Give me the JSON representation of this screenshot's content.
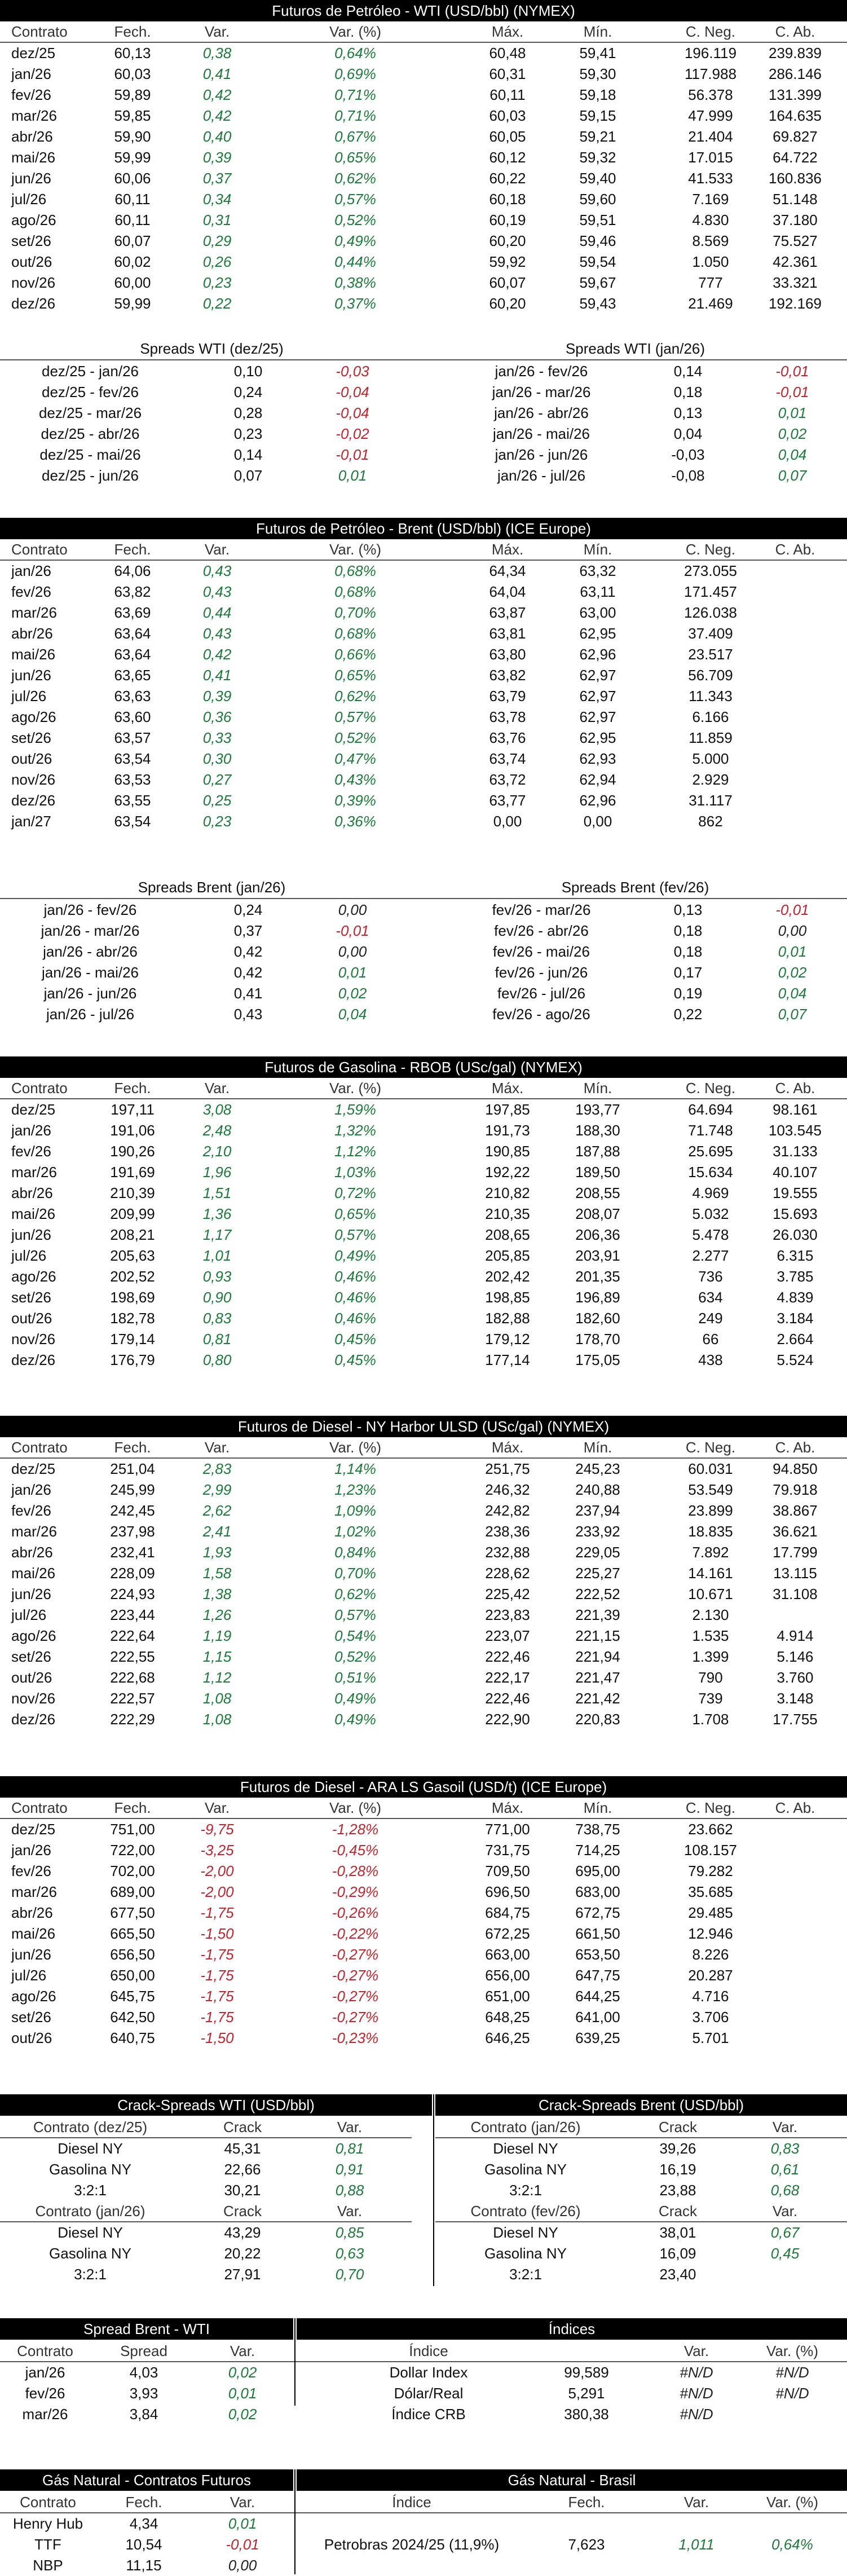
{
  "colors": {
    "positive": "#1e7a3a",
    "negative": "#c0262d",
    "header_bg": "#000000"
  },
  "col_headers": {
    "contrato": "Contrato",
    "fech": "Fech.",
    "var": "Var.",
    "varp": "Var. (%)",
    "max": "Máx.",
    "min": "Mín.",
    "cneg": "C. Neg.",
    "cab": "C. Ab."
  },
  "wti": {
    "title": "Futuros de Petróleo - WTI (USD/bbl) (NYMEX)",
    "rows": [
      [
        "dez/25",
        "60,13",
        "0,38",
        "0,64%",
        "60,48",
        "59,41",
        "196.119",
        "239.839"
      ],
      [
        "jan/26",
        "60,03",
        "0,41",
        "0,69%",
        "60,31",
        "59,30",
        "117.988",
        "286.146"
      ],
      [
        "fev/26",
        "59,89",
        "0,42",
        "0,71%",
        "60,11",
        "59,18",
        "56.378",
        "131.399"
      ],
      [
        "mar/26",
        "59,85",
        "0,42",
        "0,71%",
        "60,03",
        "59,15",
        "47.999",
        "164.635"
      ],
      [
        "abr/26",
        "59,90",
        "0,40",
        "0,67%",
        "60,05",
        "59,21",
        "21.404",
        "69.827"
      ],
      [
        "mai/26",
        "59,99",
        "0,39",
        "0,65%",
        "60,12",
        "59,32",
        "17.015",
        "64.722"
      ],
      [
        "jun/26",
        "60,06",
        "0,37",
        "0,62%",
        "60,22",
        "59,40",
        "41.533",
        "160.836"
      ],
      [
        "jul/26",
        "60,11",
        "0,34",
        "0,57%",
        "60,18",
        "59,60",
        "7.169",
        "51.148"
      ],
      [
        "ago/26",
        "60,11",
        "0,31",
        "0,52%",
        "60,19",
        "59,51",
        "4.830",
        "37.180"
      ],
      [
        "set/26",
        "60,07",
        "0,29",
        "0,49%",
        "60,20",
        "59,46",
        "8.569",
        "75.527"
      ],
      [
        "out/26",
        "60,02",
        "0,26",
        "0,44%",
        "59,92",
        "59,54",
        "1.050",
        "42.361"
      ],
      [
        "nov/26",
        "60,00",
        "0,23",
        "0,38%",
        "60,07",
        "59,67",
        "777",
        "33.321"
      ],
      [
        "dez/26",
        "59,99",
        "0,22",
        "0,37%",
        "60,20",
        "59,43",
        "21.469",
        "192.169"
      ]
    ],
    "spreads_left_title": "Spreads WTI (dez/25)",
    "spreads_right_title": "Spreads WTI (jan/26)",
    "spreads_left": [
      [
        "dez/25 - jan/26",
        "0,10",
        "-0,03"
      ],
      [
        "dez/25 - fev/26",
        "0,24",
        "-0,04"
      ],
      [
        "dez/25 - mar/26",
        "0,28",
        "-0,04"
      ],
      [
        "dez/25 - abr/26",
        "0,23",
        "-0,02"
      ],
      [
        "dez/25 - mai/26",
        "0,14",
        "-0,01"
      ],
      [
        "dez/25 - jun/26",
        "0,07",
        "0,01"
      ]
    ],
    "spreads_right": [
      [
        "jan/26 - fev/26",
        "0,14",
        "-0,01"
      ],
      [
        "jan/26 - mar/26",
        "0,18",
        "-0,01"
      ],
      [
        "jan/26 - abr/26",
        "0,13",
        "0,01"
      ],
      [
        "jan/26 - mai/26",
        "0,04",
        "0,02"
      ],
      [
        "jan/26 - jun/26",
        "-0,03",
        "0,04"
      ],
      [
        "jan/26 - jul/26",
        "-0,08",
        "0,07"
      ]
    ]
  },
  "brent": {
    "title": "Futuros de Petróleo - Brent (USD/bbl) (ICE Europe)",
    "rows": [
      [
        "jan/26",
        "64,06",
        "0,43",
        "0,68%",
        "64,34",
        "63,32",
        "273.055",
        ""
      ],
      [
        "fev/26",
        "63,82",
        "0,43",
        "0,68%",
        "64,04",
        "63,11",
        "171.457",
        ""
      ],
      [
        "mar/26",
        "63,69",
        "0,44",
        "0,70%",
        "63,87",
        "63,00",
        "126.038",
        ""
      ],
      [
        "abr/26",
        "63,64",
        "0,43",
        "0,68%",
        "63,81",
        "62,95",
        "37.409",
        ""
      ],
      [
        "mai/26",
        "63,64",
        "0,42",
        "0,66%",
        "63,80",
        "62,96",
        "23.517",
        ""
      ],
      [
        "jun/26",
        "63,65",
        "0,41",
        "0,65%",
        "63,82",
        "62,97",
        "56.709",
        ""
      ],
      [
        "jul/26",
        "63,63",
        "0,39",
        "0,62%",
        "63,79",
        "62,97",
        "11.343",
        ""
      ],
      [
        "ago/26",
        "63,60",
        "0,36",
        "0,57%",
        "63,78",
        "62,97",
        "6.166",
        ""
      ],
      [
        "set/26",
        "63,57",
        "0,33",
        "0,52%",
        "63,76",
        "62,95",
        "11.859",
        ""
      ],
      [
        "out/26",
        "63,54",
        "0,30",
        "0,47%",
        "63,74",
        "62,93",
        "5.000",
        ""
      ],
      [
        "nov/26",
        "63,53",
        "0,27",
        "0,43%",
        "63,72",
        "62,94",
        "2.929",
        ""
      ],
      [
        "dez/26",
        "63,55",
        "0,25",
        "0,39%",
        "63,77",
        "62,96",
        "31.117",
        ""
      ],
      [
        "jan/27",
        "63,54",
        "0,23",
        "0,36%",
        "0,00",
        "0,00",
        "862",
        ""
      ]
    ],
    "spreads_left_title": "Spreads Brent (jan/26)",
    "spreads_right_title": "Spreads Brent (fev/26)",
    "spreads_left": [
      [
        "jan/26 - fev/26",
        "0,24",
        "0,00"
      ],
      [
        "jan/26 - mar/26",
        "0,37",
        "-0,01"
      ],
      [
        "jan/26 - abr/26",
        "0,42",
        "0,00"
      ],
      [
        "jan/26 - mai/26",
        "0,42",
        "0,01"
      ],
      [
        "jan/26 - jun/26",
        "0,41",
        "0,02"
      ],
      [
        "jan/26 - jul/26",
        "0,43",
        "0,04"
      ]
    ],
    "spreads_right": [
      [
        "fev/26 - mar/26",
        "0,13",
        "-0,01"
      ],
      [
        "fev/26 - abr/26",
        "0,18",
        "0,00"
      ],
      [
        "fev/26 - mai/26",
        "0,18",
        "0,01"
      ],
      [
        "fev/26 - jun/26",
        "0,17",
        "0,02"
      ],
      [
        "fev/26 - jul/26",
        "0,19",
        "0,04"
      ],
      [
        "fev/26 - ago/26",
        "0,22",
        "0,07"
      ]
    ]
  },
  "rbob": {
    "title": "Futuros de Gasolina - RBOB (USc/gal) (NYMEX)",
    "rows": [
      [
        "dez/25",
        "197,11",
        "3,08",
        "1,59%",
        "197,85",
        "193,77",
        "64.694",
        "98.161"
      ],
      [
        "jan/26",
        "191,06",
        "2,48",
        "1,32%",
        "191,73",
        "188,30",
        "71.748",
        "103.545"
      ],
      [
        "fev/26",
        "190,26",
        "2,10",
        "1,12%",
        "190,85",
        "187,88",
        "25.695",
        "31.133"
      ],
      [
        "mar/26",
        "191,69",
        "1,96",
        "1,03%",
        "192,22",
        "189,50",
        "15.634",
        "40.107"
      ],
      [
        "abr/26",
        "210,39",
        "1,51",
        "0,72%",
        "210,82",
        "208,55",
        "4.969",
        "19.555"
      ],
      [
        "mai/26",
        "209,99",
        "1,36",
        "0,65%",
        "210,35",
        "208,07",
        "5.032",
        "15.693"
      ],
      [
        "jun/26",
        "208,21",
        "1,17",
        "0,57%",
        "208,65",
        "206,36",
        "5.478",
        "26.030"
      ],
      [
        "jul/26",
        "205,63",
        "1,01",
        "0,49%",
        "205,85",
        "203,91",
        "2.277",
        "6.315"
      ],
      [
        "ago/26",
        "202,52",
        "0,93",
        "0,46%",
        "202,42",
        "201,35",
        "736",
        "3.785"
      ],
      [
        "set/26",
        "198,69",
        "0,90",
        "0,46%",
        "198,85",
        "196,89",
        "634",
        "4.839"
      ],
      [
        "out/26",
        "182,78",
        "0,83",
        "0,46%",
        "182,88",
        "182,60",
        "249",
        "3.184"
      ],
      [
        "nov/26",
        "179,14",
        "0,81",
        "0,45%",
        "179,12",
        "178,70",
        "66",
        "2.664"
      ],
      [
        "dez/26",
        "176,79",
        "0,80",
        "0,45%",
        "177,14",
        "175,05",
        "438",
        "5.524"
      ]
    ]
  },
  "ulsd": {
    "title": "Futuros de Diesel - NY Harbor ULSD (USc/gal) (NYMEX)",
    "rows": [
      [
        "dez/25",
        "251,04",
        "2,83",
        "1,14%",
        "251,75",
        "245,23",
        "60.031",
        "94.850"
      ],
      [
        "jan/26",
        "245,99",
        "2,99",
        "1,23%",
        "246,32",
        "240,88",
        "53.549",
        "79.918"
      ],
      [
        "fev/26",
        "242,45",
        "2,62",
        "1,09%",
        "242,82",
        "237,94",
        "23.899",
        "38.867"
      ],
      [
        "mar/26",
        "237,98",
        "2,41",
        "1,02%",
        "238,36",
        "233,92",
        "18.835",
        "36.621"
      ],
      [
        "abr/26",
        "232,41",
        "1,93",
        "0,84%",
        "232,88",
        "229,05",
        "7.892",
        "17.799"
      ],
      [
        "mai/26",
        "228,09",
        "1,58",
        "0,70%",
        "228,62",
        "225,27",
        "14.161",
        "13.115"
      ],
      [
        "jun/26",
        "224,93",
        "1,38",
        "0,62%",
        "225,42",
        "222,52",
        "10.671",
        "31.108"
      ],
      [
        "jul/26",
        "223,44",
        "1,26",
        "0,57%",
        "223,83",
        "221,39",
        "2.130",
        ""
      ],
      [
        "ago/26",
        "222,64",
        "1,19",
        "0,54%",
        "223,07",
        "221,15",
        "1.535",
        "4.914"
      ],
      [
        "set/26",
        "222,55",
        "1,15",
        "0,52%",
        "222,46",
        "221,94",
        "1.399",
        "5.146"
      ],
      [
        "out/26",
        "222,68",
        "1,12",
        "0,51%",
        "222,17",
        "221,47",
        "790",
        "3.760"
      ],
      [
        "nov/26",
        "222,57",
        "1,08",
        "0,49%",
        "222,46",
        "221,42",
        "739",
        "3.148"
      ],
      [
        "dez/26",
        "222,29",
        "1,08",
        "0,49%",
        "222,90",
        "220,83",
        "1.708",
        "17.755"
      ]
    ]
  },
  "gasoil": {
    "title": "Futuros de Diesel - ARA LS Gasoil (USD/t) (ICE Europe)",
    "rows": [
      [
        "dez/25",
        "751,00",
        "-9,75",
        "-1,28%",
        "771,00",
        "738,75",
        "23.662",
        ""
      ],
      [
        "jan/26",
        "722,00",
        "-3,25",
        "-0,45%",
        "731,75",
        "714,25",
        "108.157",
        ""
      ],
      [
        "fev/26",
        "702,00",
        "-2,00",
        "-0,28%",
        "709,50",
        "695,00",
        "79.282",
        ""
      ],
      [
        "mar/26",
        "689,00",
        "-2,00",
        "-0,29%",
        "696,50",
        "683,00",
        "35.685",
        ""
      ],
      [
        "abr/26",
        "677,50",
        "-1,75",
        "-0,26%",
        "684,75",
        "672,75",
        "29.485",
        ""
      ],
      [
        "mai/26",
        "665,50",
        "-1,50",
        "-0,22%",
        "672,25",
        "661,50",
        "12.946",
        ""
      ],
      [
        "jun/26",
        "656,50",
        "-1,75",
        "-0,27%",
        "663,00",
        "653,50",
        "8.226",
        ""
      ],
      [
        "jul/26",
        "650,00",
        "-1,75",
        "-0,27%",
        "656,00",
        "647,75",
        "20.287",
        ""
      ],
      [
        "ago/26",
        "645,75",
        "-1,75",
        "-0,27%",
        "651,00",
        "644,25",
        "4.716",
        ""
      ],
      [
        "set/26",
        "642,50",
        "-1,75",
        "-0,27%",
        "648,25",
        "641,00",
        "3.706",
        ""
      ],
      [
        "out/26",
        "640,75",
        "-1,50",
        "-0,23%",
        "646,25",
        "639,25",
        "5.701",
        ""
      ]
    ]
  },
  "crack_wti": {
    "title": "Crack-Spreads WTI (USD/bbl)",
    "blocks": [
      {
        "head": [
          "Contrato (dez/25)",
          "Crack",
          "Var."
        ],
        "rows": [
          [
            "Diesel NY",
            "45,31",
            "0,81"
          ],
          [
            "Gasolina NY",
            "22,66",
            "0,91"
          ],
          [
            "3:2:1",
            "30,21",
            "0,88"
          ]
        ]
      },
      {
        "head": [
          "Contrato (jan/26)",
          "Crack",
          "Var."
        ],
        "rows": [
          [
            "Diesel NY",
            "43,29",
            "0,85"
          ],
          [
            "Gasolina NY",
            "20,22",
            "0,63"
          ],
          [
            "3:2:1",
            "27,91",
            "0,70"
          ]
        ]
      }
    ]
  },
  "crack_brent": {
    "title": "Crack-Spreads Brent (USD/bbl)",
    "blocks": [
      {
        "head": [
          "Contrato (jan/26)",
          "Crack",
          "Var."
        ],
        "rows": [
          [
            "Diesel NY",
            "39,26",
            "0,83"
          ],
          [
            "Gasolina NY",
            "16,19",
            "0,61"
          ],
          [
            "3:2:1",
            "23,88",
            "0,68"
          ]
        ]
      },
      {
        "head": [
          "Contrato (fev/26)",
          "Crack",
          "Var."
        ],
        "rows": [
          [
            "Diesel NY",
            "38,01",
            "0,67"
          ],
          [
            "Gasolina NY",
            "16,09",
            "0,45"
          ],
          [
            "3:2:1",
            "23,40",
            ""
          ]
        ]
      }
    ]
  },
  "spread_bw": {
    "title": "Spread Brent - WTI",
    "head": [
      "Contrato",
      "Spread",
      "Var."
    ],
    "rows": [
      [
        "jan/26",
        "4,03",
        "0,02"
      ],
      [
        "fev/26",
        "3,93",
        "0,01"
      ],
      [
        "mar/26",
        "3,84",
        "0,02"
      ]
    ]
  },
  "indices": {
    "title": "Índices",
    "head": [
      "Índice",
      "Var.",
      "Var. (%)"
    ],
    "rows": [
      [
        "Dollar Index",
        "99,589",
        "#N/D",
        "#N/D"
      ],
      [
        "Dólar/Real",
        "5,291",
        "#N/D",
        "#N/D"
      ],
      [
        "Índice CRB",
        "380,38",
        "#N/D",
        ""
      ]
    ]
  },
  "gn_fut": {
    "title": "Gás Natural - Contratos Futuros",
    "head": [
      "Contrato",
      "Fech.",
      "Var."
    ],
    "rows": [
      [
        "Henry Hub",
        "4,34",
        "0,01"
      ],
      [
        "TTF",
        "10,54",
        "-0,01"
      ],
      [
        "NBP",
        "11,15",
        "0,00"
      ]
    ]
  },
  "gn_br": {
    "title": "Gás Natural - Brasil",
    "head": [
      "Índice",
      "Fech.",
      "Var.",
      "Var. (%)"
    ],
    "row": [
      "Petrobras 2024/25 (11,9%)",
      "7,623",
      "1,011",
      "0,64%"
    ]
  }
}
